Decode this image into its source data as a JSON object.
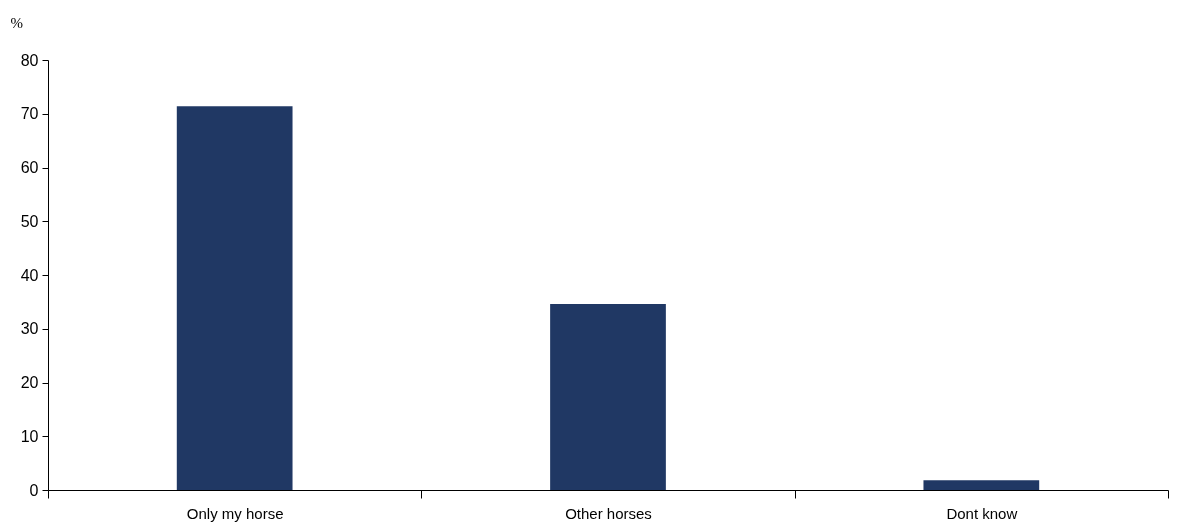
{
  "chart_data": {
    "type": "bar",
    "ylabel": "%",
    "categories": [
      "Only my horse",
      "Other horses",
      "Dont know"
    ],
    "values": [
      71.4,
      34.6,
      1.8
    ],
    "color": "#203864",
    "ylim": [
      0,
      80
    ],
    "yticks": [
      0,
      10,
      20,
      30,
      40,
      50,
      60,
      70,
      80
    ],
    "grid": false
  }
}
